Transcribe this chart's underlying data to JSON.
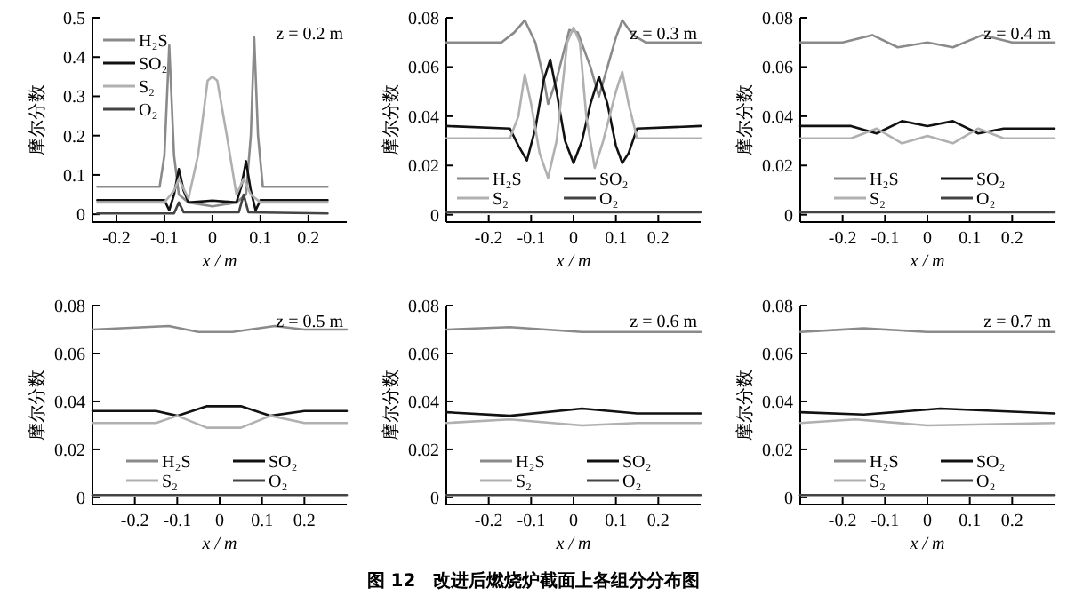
{
  "chart_data": [
    {
      "type": "line",
      "xlabel": "x / m",
      "ylabel": "摩尔分数",
      "annotations": [
        "z = 0.2 m"
      ],
      "xlim": [
        -0.25,
        0.28
      ],
      "ylim": [
        -0.02,
        0.5
      ],
      "xticks": [
        -0.2,
        -0.1,
        0,
        0.1,
        0.2
      ],
      "yticks": [
        0,
        0.1,
        0.2,
        0.3,
        0.4,
        0.5
      ],
      "legend": "top left",
      "series": [
        {
          "name": "H₂S",
          "color": "#8a8a8a",
          "x": [
            -0.24,
            -0.11,
            -0.1,
            -0.09,
            -0.08,
            -0.07,
            -0.05,
            0,
            0.05,
            0.07,
            0.08,
            0.087,
            0.095,
            0.105,
            0.24
          ],
          "values": [
            0.07,
            0.07,
            0.15,
            0.43,
            0.15,
            0.05,
            0.03,
            0.02,
            0.03,
            0.05,
            0.2,
            0.45,
            0.2,
            0.07,
            0.07
          ]
        },
        {
          "name": "SO₂",
          "color": "#111111",
          "x": [
            -0.24,
            -0.1,
            -0.09,
            -0.08,
            -0.07,
            -0.06,
            -0.05,
            0,
            0.05,
            0.06,
            0.07,
            0.08,
            0.09,
            0.1,
            0.24
          ],
          "values": [
            0.036,
            0.036,
            0.01,
            0.05,
            0.115,
            0.06,
            0.03,
            0.035,
            0.03,
            0.07,
            0.135,
            0.06,
            0.01,
            0.036,
            0.036
          ]
        },
        {
          "name": "S₂",
          "color": "#b0b0b0",
          "x": [
            -0.24,
            -0.1,
            -0.08,
            -0.07,
            -0.05,
            -0.03,
            -0.01,
            0,
            0.01,
            0.03,
            0.05,
            0.065,
            0.08,
            0.1,
            0.24
          ],
          "values": [
            0.03,
            0.03,
            0.06,
            0.09,
            0.04,
            0.15,
            0.34,
            0.35,
            0.34,
            0.2,
            0.05,
            0.09,
            0.05,
            0.03,
            0.03
          ]
        },
        {
          "name": "O₂",
          "color": "#444444",
          "x": [
            -0.24,
            -0.08,
            -0.07,
            -0.06,
            0.055,
            0.065,
            0.075,
            0.24
          ],
          "values": [
            0.002,
            0.002,
            0.03,
            0.005,
            0.005,
            0.05,
            0.005,
            0.002
          ]
        }
      ]
    },
    {
      "type": "line",
      "xlabel": "x / m",
      "ylabel": "摩尔分数",
      "annotations": [
        "z = 0.3 m"
      ],
      "xlim": [
        -0.3,
        0.3
      ],
      "ylim": [
        -0.003,
        0.08
      ],
      "xticks": [
        -0.2,
        -0.1,
        0,
        0.1,
        0.2
      ],
      "yticks": [
        0,
        0.02,
        0.04,
        0.06,
        0.08
      ],
      "legend": "bottom left",
      "series": [
        {
          "name": "H₂S",
          "color": "#8a8a8a",
          "x": [
            -0.3,
            -0.17,
            -0.14,
            -0.115,
            -0.09,
            -0.07,
            -0.06,
            -0.04,
            -0.01,
            0.01,
            0.04,
            0.06,
            0.08,
            0.1,
            0.115,
            0.14,
            0.17,
            0.3
          ],
          "values": [
            0.07,
            0.07,
            0.074,
            0.079,
            0.07,
            0.055,
            0.045,
            0.055,
            0.075,
            0.074,
            0.06,
            0.048,
            0.06,
            0.072,
            0.079,
            0.073,
            0.07,
            0.07
          ]
        },
        {
          "name": "SO₂",
          "color": "#111111",
          "x": [
            -0.3,
            -0.15,
            -0.13,
            -0.11,
            -0.09,
            -0.07,
            -0.055,
            -0.04,
            -0.02,
            0,
            0.02,
            0.04,
            0.06,
            0.08,
            0.1,
            0.115,
            0.13,
            0.15,
            0.3
          ],
          "values": [
            0.036,
            0.035,
            0.028,
            0.022,
            0.035,
            0.055,
            0.063,
            0.05,
            0.03,
            0.021,
            0.03,
            0.045,
            0.056,
            0.045,
            0.028,
            0.021,
            0.025,
            0.035,
            0.036
          ]
        },
        {
          "name": "S₂",
          "color": "#b0b0b0",
          "x": [
            -0.3,
            -0.15,
            -0.13,
            -0.115,
            -0.1,
            -0.08,
            -0.06,
            -0.04,
            -0.015,
            0,
            0.015,
            0.03,
            0.05,
            0.07,
            0.1,
            0.115,
            0.13,
            0.15,
            0.3
          ],
          "values": [
            0.031,
            0.031,
            0.04,
            0.057,
            0.045,
            0.025,
            0.015,
            0.03,
            0.07,
            0.076,
            0.07,
            0.04,
            0.019,
            0.03,
            0.05,
            0.058,
            0.045,
            0.031,
            0.031
          ]
        },
        {
          "name": "O₂",
          "color": "#444444",
          "x": [
            -0.3,
            0.3
          ],
          "values": [
            0.001,
            0.001
          ]
        }
      ]
    },
    {
      "type": "line",
      "xlabel": "x / m",
      "ylabel": "摩尔分数",
      "annotations": [
        "z = 0.4 m"
      ],
      "xlim": [
        -0.3,
        0.3
      ],
      "ylim": [
        -0.003,
        0.08
      ],
      "xticks": [
        -0.2,
        -0.1,
        0,
        0.1,
        0.2
      ],
      "yticks": [
        0,
        0.02,
        0.04,
        0.06,
        0.08
      ],
      "legend": "bottom right",
      "series": [
        {
          "name": "H₂S",
          "color": "#8a8a8a",
          "x": [
            -0.3,
            -0.2,
            -0.13,
            -0.07,
            0,
            0.06,
            0.13,
            0.2,
            0.3
          ],
          "values": [
            0.07,
            0.07,
            0.073,
            0.068,
            0.07,
            0.068,
            0.073,
            0.07,
            0.07
          ]
        },
        {
          "name": "SO₂",
          "color": "#111111",
          "x": [
            -0.3,
            -0.18,
            -0.12,
            -0.06,
            0,
            0.06,
            0.12,
            0.18,
            0.3
          ],
          "values": [
            0.036,
            0.036,
            0.033,
            0.038,
            0.036,
            0.038,
            0.033,
            0.035,
            0.035
          ]
        },
        {
          "name": "S₂",
          "color": "#b0b0b0",
          "x": [
            -0.3,
            -0.18,
            -0.12,
            -0.06,
            0,
            0.06,
            0.12,
            0.18,
            0.3
          ],
          "values": [
            0.031,
            0.031,
            0.035,
            0.029,
            0.032,
            0.029,
            0.035,
            0.031,
            0.031
          ]
        },
        {
          "name": "O₂",
          "color": "#444444",
          "x": [
            -0.3,
            0.3
          ],
          "values": [
            0.001,
            0.001
          ]
        }
      ]
    },
    {
      "type": "line",
      "xlabel": "x / m",
      "ylabel": "摩尔分数",
      "annotations": [
        "z = 0.5 m"
      ],
      "xlim": [
        -0.3,
        0.3
      ],
      "ylim": [
        -0.003,
        0.08
      ],
      "xticks": [
        -0.2,
        -0.1,
        0,
        0.1,
        0.2
      ],
      "yticks": [
        0,
        0.02,
        0.04,
        0.06,
        0.08
      ],
      "legend": "bottom right",
      "series": [
        {
          "name": "H₂S",
          "color": "#8a8a8a",
          "x": [
            -0.3,
            -0.12,
            -0.05,
            0.03,
            0.13,
            0.2,
            0.3
          ],
          "values": [
            0.07,
            0.0715,
            0.069,
            0.069,
            0.0715,
            0.07,
            0.07
          ]
        },
        {
          "name": "SO₂",
          "color": "#111111",
          "x": [
            -0.3,
            -0.15,
            -0.1,
            -0.03,
            0.05,
            0.12,
            0.2,
            0.3
          ],
          "values": [
            0.036,
            0.036,
            0.034,
            0.038,
            0.038,
            0.034,
            0.036,
            0.036
          ]
        },
        {
          "name": "S₂",
          "color": "#b0b0b0",
          "x": [
            -0.3,
            -0.15,
            -0.1,
            -0.03,
            0.05,
            0.12,
            0.2,
            0.3
          ],
          "values": [
            0.031,
            0.031,
            0.034,
            0.029,
            0.029,
            0.034,
            0.031,
            0.031
          ]
        },
        {
          "name": "O₂",
          "color": "#444444",
          "x": [
            -0.3,
            0.3
          ],
          "values": [
            0.001,
            0.001
          ]
        }
      ]
    },
    {
      "type": "line",
      "xlabel": "x / m",
      "ylabel": "摩尔分数",
      "annotations": [
        "z = 0.6 m",
        "图 12　改进后燃烧炉截面上各组分分布图"
      ],
      "xlim": [
        -0.3,
        0.3
      ],
      "ylim": [
        -0.003,
        0.08
      ],
      "xticks": [
        -0.2,
        -0.1,
        0,
        0.1,
        0.2
      ],
      "yticks": [
        0,
        0.02,
        0.04,
        0.06,
        0.08
      ],
      "legend": "bottom right",
      "series": [
        {
          "name": "H₂S",
          "color": "#8a8a8a",
          "x": [
            -0.3,
            -0.15,
            0.02,
            0.3
          ],
          "values": [
            0.07,
            0.071,
            0.069,
            0.069
          ]
        },
        {
          "name": "SO₂",
          "color": "#111111",
          "x": [
            -0.3,
            -0.15,
            0.02,
            0.15,
            0.3
          ],
          "values": [
            0.0355,
            0.034,
            0.037,
            0.035,
            0.035
          ]
        },
        {
          "name": "S₂",
          "color": "#b0b0b0",
          "x": [
            -0.3,
            -0.15,
            0.02,
            0.15,
            0.3
          ],
          "values": [
            0.031,
            0.0325,
            0.03,
            0.031,
            0.031
          ]
        },
        {
          "name": "O₂",
          "color": "#444444",
          "x": [
            -0.3,
            0.3
          ],
          "values": [
            0.001,
            0.001
          ]
        }
      ]
    },
    {
      "type": "line",
      "xlabel": "x / m",
      "ylabel": "摩尔分数",
      "annotations": [
        "z = 0.7 m"
      ],
      "xlim": [
        -0.3,
        0.3
      ],
      "ylim": [
        -0.003,
        0.08
      ],
      "xticks": [
        -0.2,
        -0.1,
        0,
        0.1,
        0.2
      ],
      "yticks": [
        0,
        0.02,
        0.04,
        0.06,
        0.08
      ],
      "legend": "bottom right",
      "series": [
        {
          "name": "H₂S",
          "color": "#8a8a8a",
          "x": [
            -0.3,
            -0.15,
            0,
            0.3
          ],
          "values": [
            0.069,
            0.0705,
            0.069,
            0.069
          ]
        },
        {
          "name": "SO₂",
          "color": "#111111",
          "x": [
            -0.3,
            -0.15,
            0.03,
            0.3
          ],
          "values": [
            0.0355,
            0.0345,
            0.037,
            0.035
          ]
        },
        {
          "name": "S₂",
          "color": "#b0b0b0",
          "x": [
            -0.3,
            -0.17,
            0,
            0.3
          ],
          "values": [
            0.031,
            0.0325,
            0.03,
            0.031
          ]
        },
        {
          "name": "O₂",
          "color": "#444444",
          "x": [
            -0.3,
            0.3
          ],
          "values": [
            0.001,
            0.001
          ]
        }
      ]
    }
  ]
}
